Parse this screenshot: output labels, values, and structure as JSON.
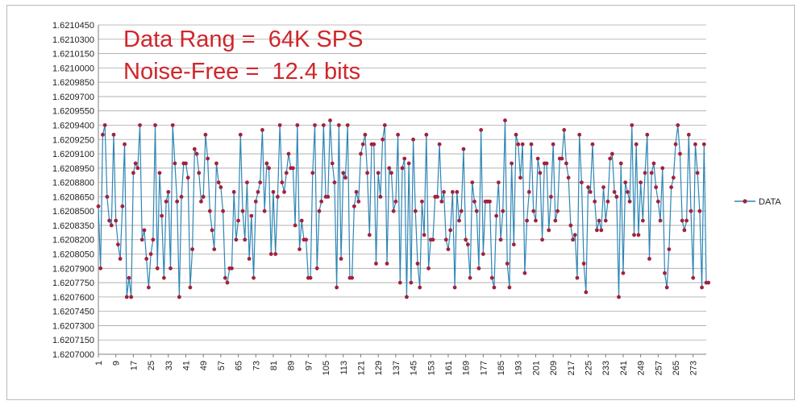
{
  "chart_data": {
    "type": "line",
    "annotation_lines": [
      "Data Rang =  64K SPS",
      "Noise-Free =  12.4 bits"
    ],
    "annotation_color": "#d0262a",
    "series_color": "#2e86b5",
    "marker_color": "#a3213a",
    "y_ticks": [
      "1.6210450",
      "1.6210300",
      "1.6210150",
      "1.6210000",
      "1.6209850",
      "1.6209700",
      "1.6209550",
      "1.6209400",
      "1.6209250",
      "1.6209100",
      "1.6208950",
      "1.6208800",
      "1.6208650",
      "1.6208500",
      "1.6208350",
      "1.6208200",
      "1.6208050",
      "1.6207900",
      "1.6207750",
      "1.6207600",
      "1.6207450",
      "1.6207300",
      "1.6207150",
      "1.6207000"
    ],
    "ylim": [
      1.6207,
      1.621045
    ],
    "x_ticks": [
      "1",
      "9",
      "17",
      "25",
      "33",
      "41",
      "49",
      "57",
      "65",
      "73",
      "81",
      "89",
      "97",
      "105",
      "113",
      "121",
      "129",
      "137",
      "145",
      "153",
      "161",
      "169",
      "177",
      "185",
      "193",
      "201",
      "209",
      "217",
      "225",
      "233",
      "241",
      "249",
      "257",
      "265",
      "273"
    ],
    "x_range": [
      1,
      279
    ],
    "grid": true,
    "legend_position": "right",
    "series": [
      {
        "name": "DATA",
        "x_start": 1,
        "values": [
          1.620855,
          1.62079,
          1.62093,
          1.62094,
          1.620865,
          1.62084,
          1.620835,
          1.62093,
          1.62084,
          1.620815,
          1.6208,
          1.620855,
          1.62092,
          1.62076,
          1.62078,
          1.62076,
          1.62089,
          1.6209,
          1.620895,
          1.62094,
          1.62082,
          1.62083,
          1.6208,
          1.62077,
          1.620805,
          1.62082,
          1.62094,
          1.62079,
          1.62089,
          1.620845,
          1.62078,
          1.62086,
          1.62087,
          1.62079,
          1.62094,
          1.6209,
          1.62086,
          1.62076,
          1.620865,
          1.6209,
          1.6209,
          1.620885,
          1.62077,
          1.62081,
          1.620915,
          1.62091,
          1.62089,
          1.62086,
          1.620865,
          1.62093,
          1.620905,
          1.62085,
          1.62083,
          1.62081,
          1.6209,
          1.62088,
          1.620875,
          1.62085,
          1.62078,
          1.620775,
          1.62079,
          1.62079,
          1.62087,
          1.62082,
          1.62084,
          1.62093,
          1.62085,
          1.62082,
          1.62088,
          1.6208,
          1.620845,
          1.62078,
          1.62086,
          1.62087,
          1.62088,
          1.620935,
          1.62085,
          1.6209,
          1.620895,
          1.620805,
          1.62087,
          1.620805,
          1.620865,
          1.62094,
          1.62088,
          1.62087,
          1.62089,
          1.62091,
          1.620895,
          1.620895,
          1.620835,
          1.62094,
          1.62081,
          1.62084,
          1.62082,
          1.62082,
          1.62078,
          1.62078,
          1.62089,
          1.62094,
          1.62079,
          1.62085,
          1.62086,
          1.62094,
          1.620865,
          1.620865,
          1.620945,
          1.6209,
          1.62088,
          1.62077,
          1.62094,
          1.6208,
          1.62089,
          1.620885,
          1.62094,
          1.62078,
          1.62078,
          1.620855,
          1.62087,
          1.62086,
          1.62091,
          1.62092,
          1.62093,
          1.62089,
          1.620825,
          1.62092,
          1.62092,
          1.620795,
          1.62089,
          1.620865,
          1.620925,
          1.62094,
          1.620795,
          1.620895,
          1.62089,
          1.62085,
          1.62086,
          1.62093,
          1.620775,
          1.620895,
          1.620905,
          1.62076,
          1.6209,
          1.620775,
          1.620925,
          1.62085,
          1.620795,
          1.62077,
          1.62086,
          1.620825,
          1.62093,
          1.62079,
          1.62082,
          1.62082,
          1.620865,
          1.620865,
          1.62092,
          1.62086,
          1.62087,
          1.62082,
          1.62081,
          1.62083,
          1.62087,
          1.62077,
          1.62087,
          1.62084,
          1.62085,
          1.620915,
          1.62082,
          1.620815,
          1.62078,
          1.62088,
          1.62086,
          1.62085,
          1.62079,
          1.620935,
          1.620805,
          1.62086,
          1.62086,
          1.62086,
          1.62078,
          1.62077,
          1.620845,
          1.62088,
          1.62082,
          1.62085,
          1.620945,
          1.620795,
          1.62077,
          1.6209,
          1.620815,
          1.62093,
          1.62092,
          1.620885,
          1.62092,
          1.620785,
          1.62084,
          1.62087,
          1.62092,
          1.62085,
          1.62084,
          1.620905,
          1.62089,
          1.62082,
          1.6209,
          1.6209,
          1.62083,
          1.620865,
          1.62092,
          1.62084,
          1.62085,
          1.620905,
          1.620905,
          1.620935,
          1.6209,
          1.620885,
          1.620835,
          1.62082,
          1.620825,
          1.62078,
          1.62093,
          1.62088,
          1.620795,
          1.620765,
          1.620875,
          1.62087,
          1.62092,
          1.62086,
          1.62083,
          1.62084,
          1.62083,
          1.620875,
          1.62084,
          1.62086,
          1.620905,
          1.62091,
          1.62087,
          1.620865,
          1.62076,
          1.6209,
          1.620785,
          1.62088,
          1.62087,
          1.62086,
          1.62094,
          1.620825,
          1.62092,
          1.620825,
          1.62088,
          1.62084,
          1.62089,
          1.62093,
          1.6208,
          1.62089,
          1.6209,
          1.620875,
          1.62086,
          1.62084,
          1.620895,
          1.620785,
          1.62077,
          1.62081,
          1.620875,
          1.620885,
          1.62092,
          1.62094,
          1.62091,
          1.62084,
          1.62083,
          1.62084,
          1.62093,
          1.62085,
          1.62078,
          1.62092,
          1.62089,
          1.62085,
          1.62077,
          1.62092,
          1.620775,
          1.620775
        ]
      }
    ]
  }
}
